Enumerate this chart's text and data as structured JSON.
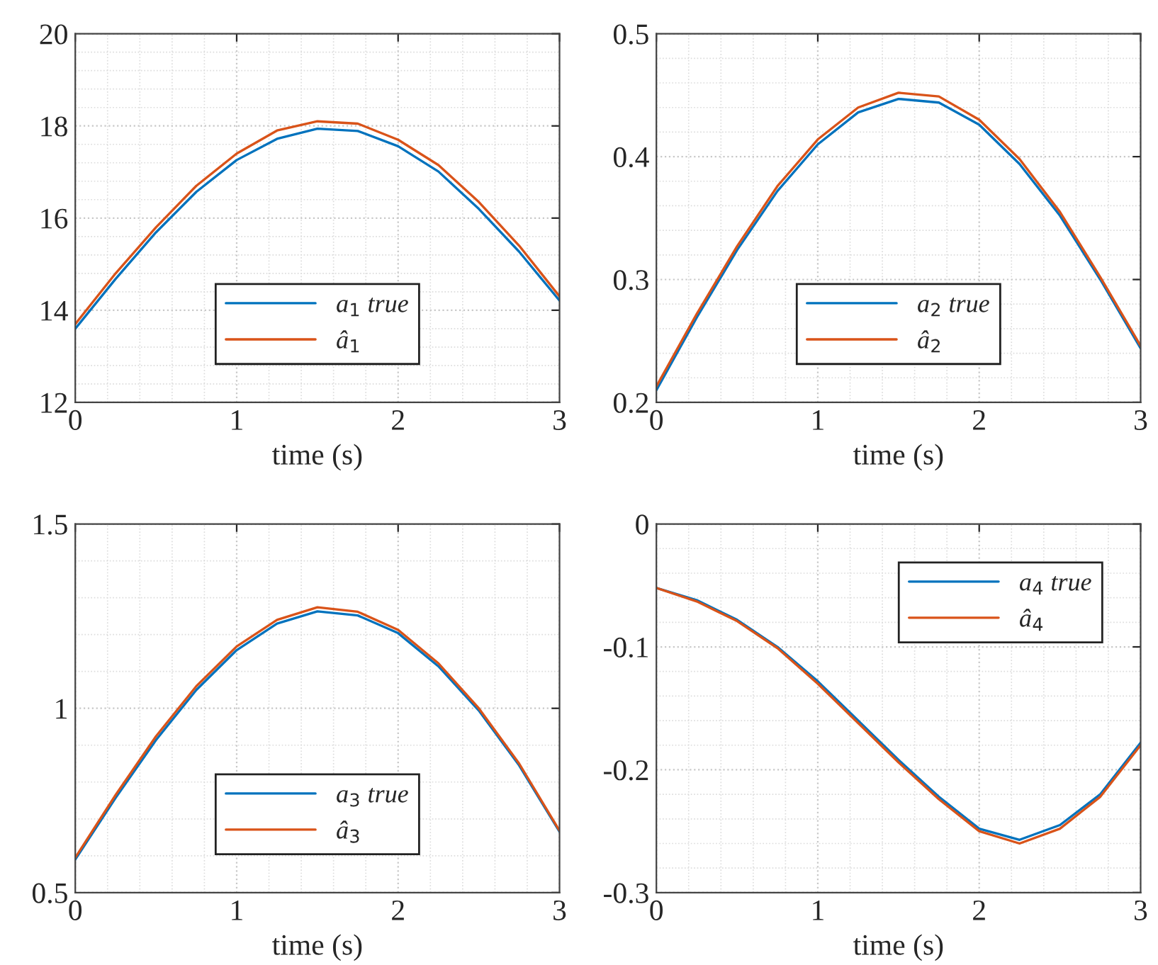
{
  "chart_data": [
    {
      "type": "line",
      "xlabel": "time (s)",
      "x": [
        0,
        0.25,
        0.5,
        0.75,
        1,
        1.25,
        1.5,
        1.75,
        2,
        2.25,
        2.5,
        2.75,
        3
      ],
      "xlim": [
        0,
        3
      ],
      "xticks": [
        0,
        1,
        2,
        3
      ],
      "ylim": [
        12,
        20
      ],
      "yticks": [
        12,
        14,
        16,
        18,
        20
      ],
      "grid": true,
      "legend": "lower center",
      "series": [
        {
          "name": "a$_{1}$ true",
          "color": "#0072bd",
          "values": [
            13.6,
            14.68,
            15.69,
            16.57,
            17.26,
            17.72,
            17.94,
            17.89,
            17.56,
            17.01,
            16.2,
            15.27,
            14.21
          ]
        },
        {
          "name": "â$_{1}$",
          "color": "#d95319",
          "values": [
            13.7,
            14.8,
            15.8,
            16.7,
            17.4,
            17.9,
            18.1,
            18.05,
            17.7,
            17.15,
            16.35,
            15.4,
            14.3
          ]
        }
      ]
    },
    {
      "type": "line",
      "xlabel": "time (s)",
      "x": [
        0,
        0.25,
        0.5,
        0.75,
        1,
        1.25,
        1.5,
        1.75,
        2,
        2.25,
        2.5,
        2.75,
        3
      ],
      "xlim": [
        0,
        3
      ],
      "xticks": [
        0,
        1,
        2,
        3
      ],
      "ylim": [
        0.2,
        0.5
      ],
      "yticks": [
        0.2,
        0.3,
        0.4,
        0.5
      ],
      "grid": true,
      "legend": "lower center",
      "series": [
        {
          "name": "a$_{2}$ true",
          "color": "#0072bd",
          "values": [
            0.21,
            0.269,
            0.324,
            0.372,
            0.41,
            0.436,
            0.447,
            0.444,
            0.426,
            0.394,
            0.352,
            0.3,
            0.244
          ]
        },
        {
          "name": "â$_{2}$",
          "color": "#d95319",
          "values": [
            0.213,
            0.272,
            0.327,
            0.376,
            0.414,
            0.44,
            0.452,
            0.449,
            0.43,
            0.398,
            0.355,
            0.302,
            0.246
          ]
        }
      ]
    },
    {
      "type": "line",
      "xlabel": "time (s)",
      "x": [
        0,
        0.25,
        0.5,
        0.75,
        1,
        1.25,
        1.5,
        1.75,
        2,
        2.25,
        2.5,
        2.75,
        3
      ],
      "xlim": [
        0,
        3
      ],
      "xticks": [
        0,
        1,
        2,
        3
      ],
      "ylim": [
        0.5,
        1.5
      ],
      "yticks": [
        0.5,
        1,
        1.5
      ],
      "grid": true,
      "legend": "lower center",
      "series": [
        {
          "name": "a$_{3}$ true",
          "color": "#0072bd",
          "values": [
            0.59,
            0.757,
            0.914,
            1.05,
            1.158,
            1.23,
            1.263,
            1.252,
            1.204,
            1.114,
            0.994,
            0.845,
            0.665
          ]
        },
        {
          "name": "â$_{3}$",
          "color": "#d95319",
          "values": [
            0.595,
            0.765,
            0.924,
            1.06,
            1.168,
            1.24,
            1.274,
            1.262,
            1.213,
            1.122,
            1.0,
            0.85,
            0.668
          ]
        }
      ]
    },
    {
      "type": "line",
      "xlabel": "time (s)",
      "x": [
        0,
        0.25,
        0.5,
        0.75,
        1,
        1.25,
        1.5,
        1.75,
        2,
        2.25,
        2.5,
        2.75,
        3
      ],
      "xlim": [
        0,
        3
      ],
      "xticks": [
        0,
        1,
        2,
        3
      ],
      "ylim": [
        -0.3,
        0
      ],
      "yticks": [
        -0.3,
        -0.2,
        -0.1,
        0
      ],
      "grid": true,
      "legend": "upper right",
      "series": [
        {
          "name": "a$_{4}$ true",
          "color": "#0072bd",
          "values": [
            -0.052,
            -0.062,
            -0.078,
            -0.1,
            -0.128,
            -0.16,
            -0.192,
            -0.222,
            -0.248,
            -0.257,
            -0.245,
            -0.22,
            -0.178
          ]
        },
        {
          "name": "â$_{4}$",
          "color": "#d95319",
          "values": [
            -0.052,
            -0.063,
            -0.079,
            -0.101,
            -0.13,
            -0.162,
            -0.194,
            -0.224,
            -0.25,
            -0.26,
            -0.248,
            -0.222,
            -0.18
          ]
        }
      ]
    }
  ]
}
